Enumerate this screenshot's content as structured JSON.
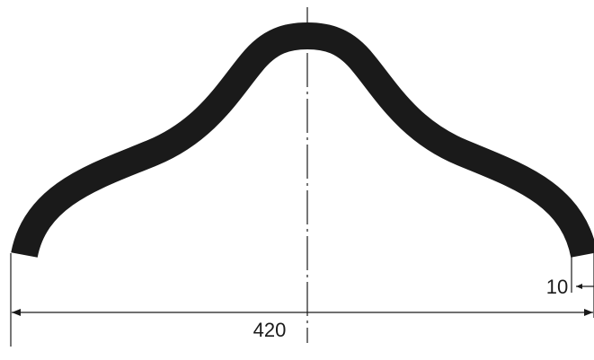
{
  "dimensions": {
    "overall_width": "420",
    "end_thickness": "10"
  },
  "colors": {
    "shape": "#1a1a1a",
    "line": "#1a1a1a",
    "background": "#ffffff"
  }
}
